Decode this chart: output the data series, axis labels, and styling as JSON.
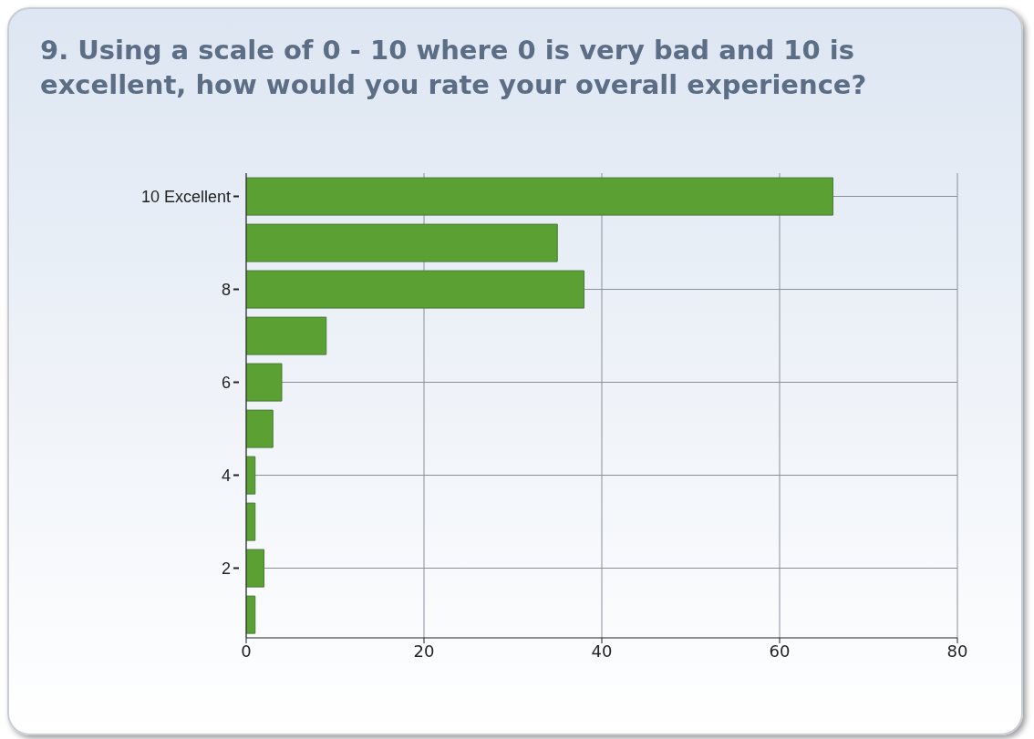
{
  "chart_data": {
    "type": "bar",
    "orientation": "horizontal",
    "title": "9. Using a scale of 0 - 10 where 0 is very bad and 10 is excellent, how would you rate your  overall experience?",
    "categories": [
      "10 Excellent",
      null,
      "8",
      null,
      "6",
      null,
      "4",
      null,
      "2",
      null
    ],
    "values": [
      66,
      35,
      38,
      9,
      4,
      3,
      1,
      1,
      2,
      1
    ],
    "color": "#5aa033",
    "xlim": [
      0,
      80
    ],
    "xticks": [
      0,
      20,
      40,
      60,
      80
    ],
    "grid": true,
    "legend": false
  }
}
